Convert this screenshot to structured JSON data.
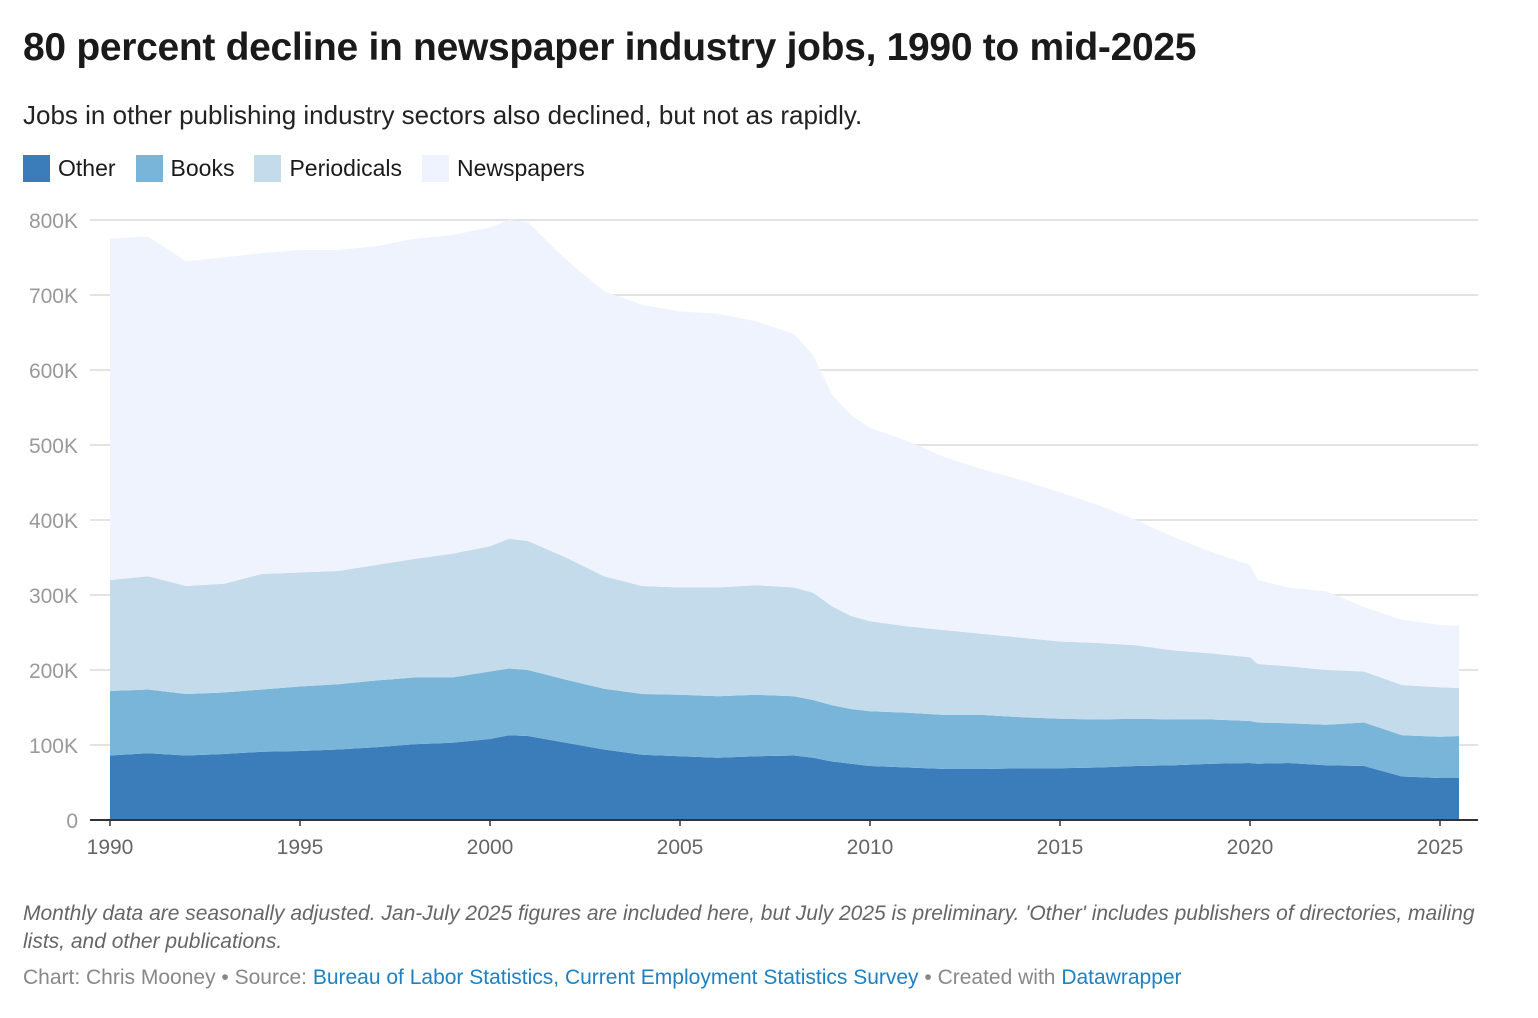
{
  "chart_data": {
    "type": "area",
    "stacked": true,
    "title": "80 percent decline in newspaper industry jobs, 1990 to mid-2025",
    "subtitle": "Jobs in other publishing industry sectors also declined, but not as rapidly.",
    "xlabel": "",
    "ylabel": "",
    "xlim": [
      1990,
      2025.6
    ],
    "ylim": [
      0,
      800
    ],
    "y_unit": "thousands of jobs",
    "yticks": [
      0,
      100,
      200,
      300,
      400,
      500,
      600,
      700,
      800
    ],
    "ytick_labels": [
      "0",
      "100K",
      "200K",
      "300K",
      "400K",
      "500K",
      "600K",
      "700K",
      "800K"
    ],
    "xticks": [
      1990,
      1995,
      2000,
      2005,
      2010,
      2015,
      2020,
      2025
    ],
    "xtick_labels": [
      "1990",
      "1995",
      "2000",
      "2005",
      "2010",
      "2015",
      "2020",
      "2025"
    ],
    "grid": true,
    "legend_placement": "top-left",
    "x": [
      1990,
      1991,
      1992,
      1993,
      1994,
      1995,
      1996,
      1997,
      1998,
      1999,
      2000,
      2000.5,
      2001,
      2002,
      2003,
      2004,
      2005,
      2006,
      2007,
      2008,
      2008.5,
      2009,
      2009.5,
      2010,
      2011,
      2012,
      2013,
      2014,
      2015,
      2016,
      2017,
      2018,
      2019,
      2020,
      2020.2,
      2021,
      2022,
      2023,
      2024,
      2025,
      2025.5
    ],
    "series": [
      {
        "name": "Other",
        "color": "#3a7dba",
        "values": [
          86,
          89,
          86,
          88,
          91,
          92,
          94,
          97,
          101,
          103,
          108,
          113,
          112,
          103,
          94,
          87,
          85,
          83,
          85,
          86,
          83,
          78,
          75,
          72,
          70,
          68,
          68,
          69,
          69,
          70,
          72,
          73,
          75,
          76,
          75,
          76,
          73,
          72,
          58,
          56,
          56
        ]
      },
      {
        "name": "Books",
        "color": "#79b4d9",
        "values": [
          86,
          85,
          82,
          82,
          83,
          86,
          87,
          89,
          89,
          87,
          90,
          89,
          88,
          84,
          81,
          81,
          82,
          82,
          82,
          79,
          77,
          75,
          73,
          73,
          73,
          72,
          72,
          68,
          66,
          64,
          63,
          61,
          59,
          56,
          55,
          53,
          54,
          58,
          55,
          55,
          56
        ]
      },
      {
        "name": "Periodicals",
        "color": "#c3dbea",
        "values": [
          148,
          151,
          144,
          145,
          154,
          152,
          151,
          154,
          158,
          165,
          167,
          173,
          172,
          163,
          150,
          144,
          143,
          145,
          146,
          145,
          143,
          132,
          124,
          120,
          115,
          113,
          108,
          106,
          103,
          102,
          98,
          92,
          88,
          85,
          78,
          76,
          73,
          68,
          67,
          66,
          64
        ]
      },
      {
        "name": "Newspapers",
        "color": "#eef3fd",
        "values": [
          455,
          453,
          433,
          435,
          428,
          430,
          428,
          425,
          427,
          425,
          425,
          425,
          425,
          397,
          380,
          375,
          368,
          365,
          352,
          338,
          317,
          282,
          268,
          258,
          247,
          230,
          219,
          210,
          199,
          184,
          167,
          151,
          135,
          123,
          112,
          105,
          105,
          86,
          87,
          83,
          83
        ]
      }
    ]
  },
  "notes": "Monthly data are seasonally adjusted. Jan-July 2025 figures are included here, but July 2025 is preliminary. 'Other' includes publishers of directories, mailing lists, and other publications.",
  "source": {
    "chart_by": "Chart: Chris Mooney",
    "sep1": " • Source: ",
    "source_link": "Bureau of Labor Statistics, Current Employment Statistics Survey",
    "sep2": " • Created with ",
    "tool_link": "Datawrapper"
  }
}
